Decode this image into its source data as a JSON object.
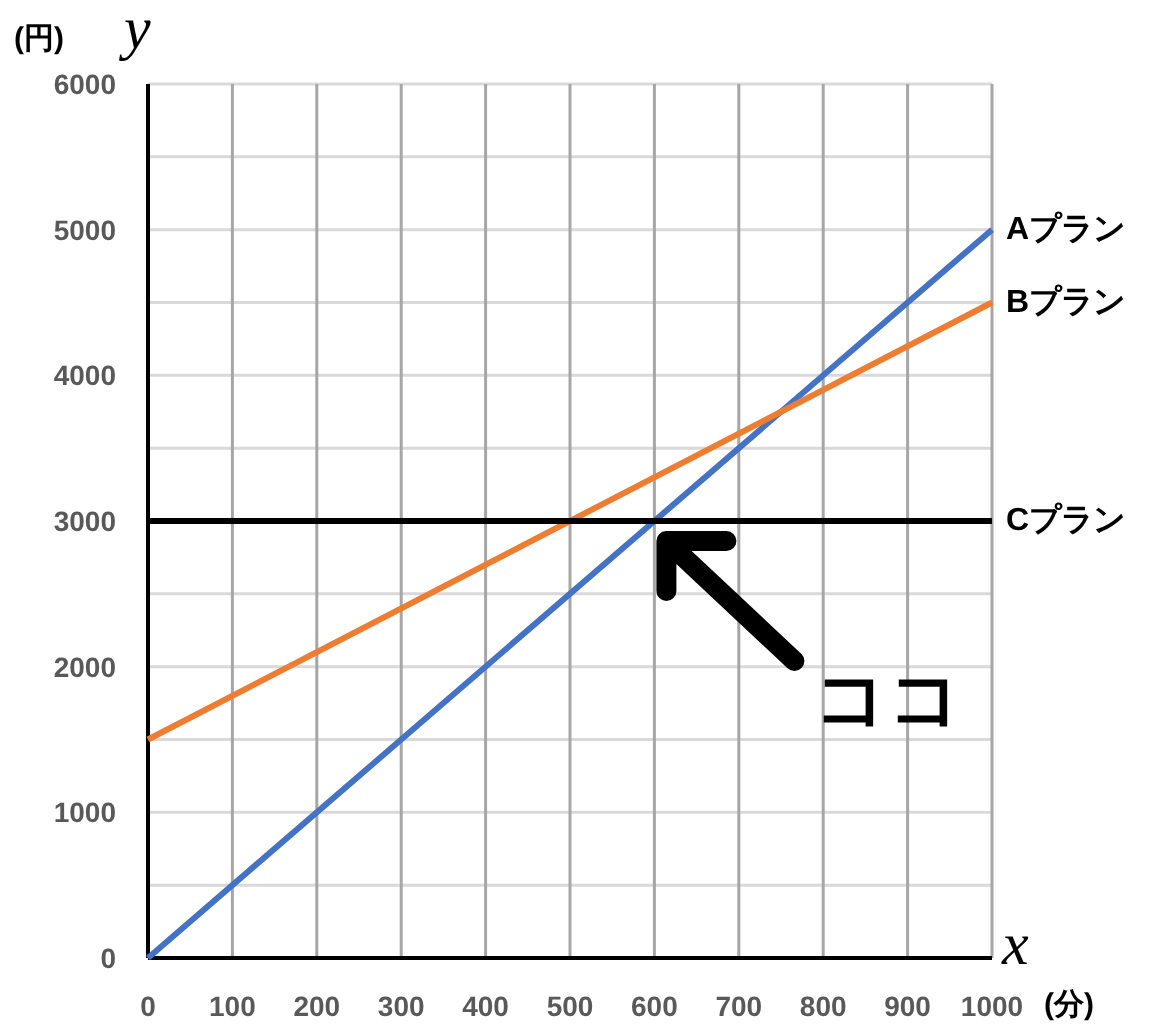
{
  "chart_data": {
    "type": "line",
    "xlabel": "x",
    "ylabel": "y",
    "x": [
      0,
      1000
    ],
    "series": [
      {
        "name": "Aプラン",
        "color": "#4472c4",
        "values": [
          0,
          5000
        ]
      },
      {
        "name": "Bプラン",
        "color": "#ed7d31",
        "values": [
          1500,
          4500
        ]
      },
      {
        "name": "Cプラン",
        "color": "#000000",
        "values": [
          3000,
          3000
        ]
      }
    ],
    "xlim": [
      0,
      1000
    ],
    "xticks": [
      0,
      100,
      200,
      300,
      400,
      500,
      600,
      700,
      800,
      900,
      1000
    ],
    "ylim": [
      0,
      6000
    ],
    "yticks": [
      0,
      {
        "value": 500,
        "label": null
      },
      1000,
      {
        "value": 1500,
        "label": null
      },
      2000,
      {
        "value": 2500,
        "label": null
      },
      3000,
      {
        "value": 3500,
        "label": null
      },
      4000,
      {
        "value": 4500,
        "label": null
      },
      5000,
      {
        "value": 5500,
        "label": null
      },
      6000
    ],
    "grid": true,
    "annotations": [
      "(円)",
      "(分)",
      {
        "text": "ココ",
        "x": 600,
        "y": 3000
      }
    ]
  }
}
